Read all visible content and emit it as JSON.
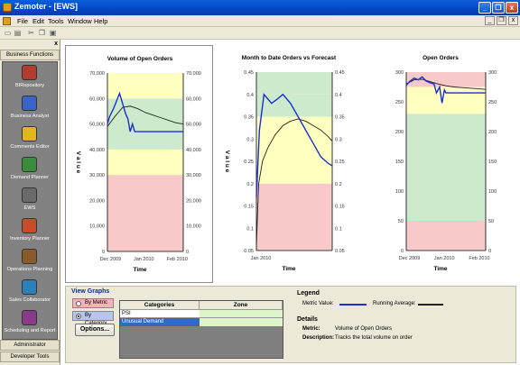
{
  "window": {
    "title": "Zemoter - [EWS]",
    "min_label": "_",
    "max_label": "❐",
    "close_label": "x"
  },
  "menu": [
    "File",
    "Edit",
    "Tools",
    "Window",
    "Help"
  ],
  "sidebar": {
    "close_label": "x",
    "header_top": "Business Functions",
    "items": [
      {
        "label": "BIRepository",
        "icon": "repository-icon",
        "color": "#b33c2c"
      },
      {
        "label": "Business Analyst",
        "icon": "analyst-icon",
        "color": "#3b64c8"
      },
      {
        "label": "Comments Editor",
        "icon": "comments-icon",
        "color": "#e3b51d"
      },
      {
        "label": "Demand Planner",
        "icon": "demand-icon",
        "color": "#3a8d3a"
      },
      {
        "label": "EWS",
        "icon": "ews-icon",
        "color": "#6a6a6a"
      },
      {
        "label": "Inventory Planner",
        "icon": "inventory-icon",
        "color": "#c94b2a"
      },
      {
        "label": "Operations Planning",
        "icon": "operations-icon",
        "color": "#8a5a2a"
      },
      {
        "label": "Sales Collaborator",
        "icon": "sales-icon",
        "color": "#2c7fb8"
      },
      {
        "label": "Scheduling and Report",
        "icon": "scheduling-icon",
        "color": "#8a3a8a"
      }
    ],
    "footer": [
      "Administrator",
      "Developer Tools"
    ]
  },
  "charts": [
    {
      "title": "Volume of Open Orders",
      "ylabel": "Value",
      "xlabel": "Time",
      "left_ticks": [
        "70,000",
        "60,000",
        "50,000",
        "40,000",
        "30,000",
        "20,000",
        "10,000",
        "0"
      ],
      "right_ticks": [
        "70,000",
        "60,000",
        "50,000",
        "40,000",
        "30,000",
        "20,000",
        "10,000",
        "0"
      ],
      "x_ticks": [
        "Dec 2009",
        "Jan 2010",
        "Feb 2010"
      ]
    },
    {
      "title": "Month to Date Orders vs Forecast",
      "ylabel": "Value",
      "xlabel": "Time",
      "left_ticks": [
        "0.45",
        "0.4",
        "0.35",
        "0.3",
        "0.25",
        "0.2",
        "0.15",
        "0.1",
        "0.05"
      ],
      "right_ticks": [
        "0.45",
        "0.4",
        "0.35",
        "0.3",
        "0.25",
        "0.2",
        "0.15",
        "0.1",
        "0.05"
      ],
      "x_ticks": [
        "Jan 2010"
      ]
    },
    {
      "title": "Open Orders",
      "ylabel": "",
      "xlabel": "Time",
      "left_ticks": [
        "300",
        "250",
        "200",
        "150",
        "100",
        "50",
        "0"
      ],
      "right_ticks": [
        "300",
        "250",
        "200",
        "150",
        "100",
        "50",
        "0"
      ],
      "x_ticks": [
        "Dec 2009",
        "Jan 2010",
        "Feb 2010"
      ]
    }
  ],
  "chart_data": [
    {
      "type": "line",
      "title": "Volume of Open Orders",
      "xlabel": "Time",
      "ylabel": "Value",
      "ylim": [
        0,
        70000
      ],
      "zones": [
        {
          "from": 0,
          "to": 30000,
          "color": "#f7c9c9"
        },
        {
          "from": 30000,
          "to": 40000,
          "color": "#ffffc0"
        },
        {
          "from": 40000,
          "to": 60000,
          "color": "#cdeacd"
        },
        {
          "from": 60000,
          "to": 70000,
          "color": "#ffffc0"
        }
      ],
      "series": [
        {
          "name": "Metric Value",
          "color": "#1a2fd0",
          "x": [
            0,
            0.03,
            0.08,
            0.12,
            0.16,
            0.2,
            0.24,
            0.27,
            0.3,
            0.33,
            0.36,
            0.4,
            0.5,
            0.6,
            0.75,
            0.88,
            1
          ],
          "values": [
            50000,
            53000,
            56000,
            59000,
            62000,
            58000,
            54000,
            52000,
            47000,
            50000,
            47000,
            47000,
            47000,
            47000,
            47000,
            47000,
            47000
          ]
        },
        {
          "name": "Running Average",
          "color": "#222222",
          "x": [
            0,
            0.1,
            0.2,
            0.3,
            0.4,
            0.5,
            0.6,
            0.7,
            0.8,
            0.9,
            1
          ],
          "values": [
            49000,
            53000,
            56500,
            57000,
            56000,
            54500,
            53500,
            52500,
            51500,
            50500,
            50000
          ]
        }
      ]
    },
    {
      "type": "line",
      "title": "Month to Date Orders vs Forecast",
      "xlabel": "Time",
      "ylabel": "Value",
      "ylim": [
        0.05,
        0.45
      ],
      "zones": [
        {
          "from": 0.05,
          "to": 0.2,
          "color": "#f7c9c9"
        },
        {
          "from": 0.2,
          "to": 0.35,
          "color": "#ffffc0"
        },
        {
          "from": 0.35,
          "to": 0.4,
          "color": "#cdeacd"
        },
        {
          "from": 0.4,
          "to": 0.45,
          "color": "#cdeacd"
        }
      ],
      "series": [
        {
          "name": "Metric Value",
          "color": "#1a2fd0",
          "x": [
            0,
            0.04,
            0.1,
            0.15,
            0.2,
            0.28,
            0.35,
            0.45,
            0.55,
            0.65,
            0.75,
            0.85,
            0.95,
            1
          ],
          "values": [
            0.17,
            0.32,
            0.4,
            0.39,
            0.38,
            0.39,
            0.4,
            0.38,
            0.35,
            0.32,
            0.29,
            0.26,
            0.245,
            0.24
          ]
        },
        {
          "name": "Running Average",
          "color": "#222222",
          "x": [
            0,
            0.03,
            0.08,
            0.15,
            0.25,
            0.35,
            0.45,
            0.55,
            0.65,
            0.75,
            0.85,
            0.95,
            1
          ],
          "values": [
            0.06,
            0.2,
            0.25,
            0.28,
            0.31,
            0.33,
            0.34,
            0.345,
            0.34,
            0.33,
            0.32,
            0.305,
            0.295
          ]
        }
      ]
    },
    {
      "type": "line",
      "title": "Open Orders",
      "xlabel": "Time",
      "ylabel": "",
      "ylim": [
        0,
        300
      ],
      "zones": [
        {
          "from": 0,
          "to": 50,
          "color": "#f7c9c9"
        },
        {
          "from": 50,
          "to": 230,
          "color": "#cdeacd"
        },
        {
          "from": 230,
          "to": 275,
          "color": "#ffffc0"
        },
        {
          "from": 275,
          "to": 300,
          "color": "#f7c9c9"
        }
      ],
      "series": [
        {
          "name": "Metric Value",
          "color": "#1a2fd0",
          "x": [
            0,
            0.05,
            0.1,
            0.15,
            0.2,
            0.25,
            0.3,
            0.35,
            0.38,
            0.42,
            0.45,
            0.48,
            0.5,
            0.6,
            0.7,
            0.8,
            0.9,
            1
          ],
          "values": [
            278,
            285,
            290,
            287,
            292,
            285,
            282,
            280,
            265,
            275,
            248,
            270,
            265,
            265,
            265,
            265,
            265,
            265
          ]
        },
        {
          "name": "Running Average",
          "color": "#222222",
          "x": [
            0,
            0.1,
            0.2,
            0.3,
            0.4,
            0.5,
            0.6,
            0.7,
            0.8,
            0.9,
            1
          ],
          "values": [
            280,
            287,
            288,
            284,
            280,
            277,
            275,
            274,
            273,
            272,
            271
          ]
        }
      ]
    }
  ],
  "view_graphs": {
    "title": "View Graphs",
    "by_metric": "By Metric",
    "by_category": "By Category",
    "options_label": "Options..."
  },
  "category_grid": {
    "columns": [
      "Categories",
      "Zone"
    ],
    "rows": [
      {
        "category": "PSI",
        "zone_color": "#ddf5c9"
      },
      {
        "category": "Unusual Demand",
        "zone_color": "#ddf5c9",
        "selected": true
      }
    ]
  },
  "legend": {
    "title": "Legend",
    "metric_label": "Metric Value:",
    "metric_color": "#1a2fd0",
    "avg_label": "Running Average:",
    "avg_color": "#222222"
  },
  "details": {
    "title": "Details",
    "metric_key": "Metric:",
    "metric_value": "Volume of Open Orders",
    "desc_key": "Description:",
    "desc_value": "Tracks the total volume on order"
  },
  "colors": {
    "titlebar": "#0447c3",
    "zone_red": "#f7c9c9",
    "zone_yellow": "#ffffc0",
    "zone_green": "#cdeacd",
    "selection": "#316ac5"
  }
}
